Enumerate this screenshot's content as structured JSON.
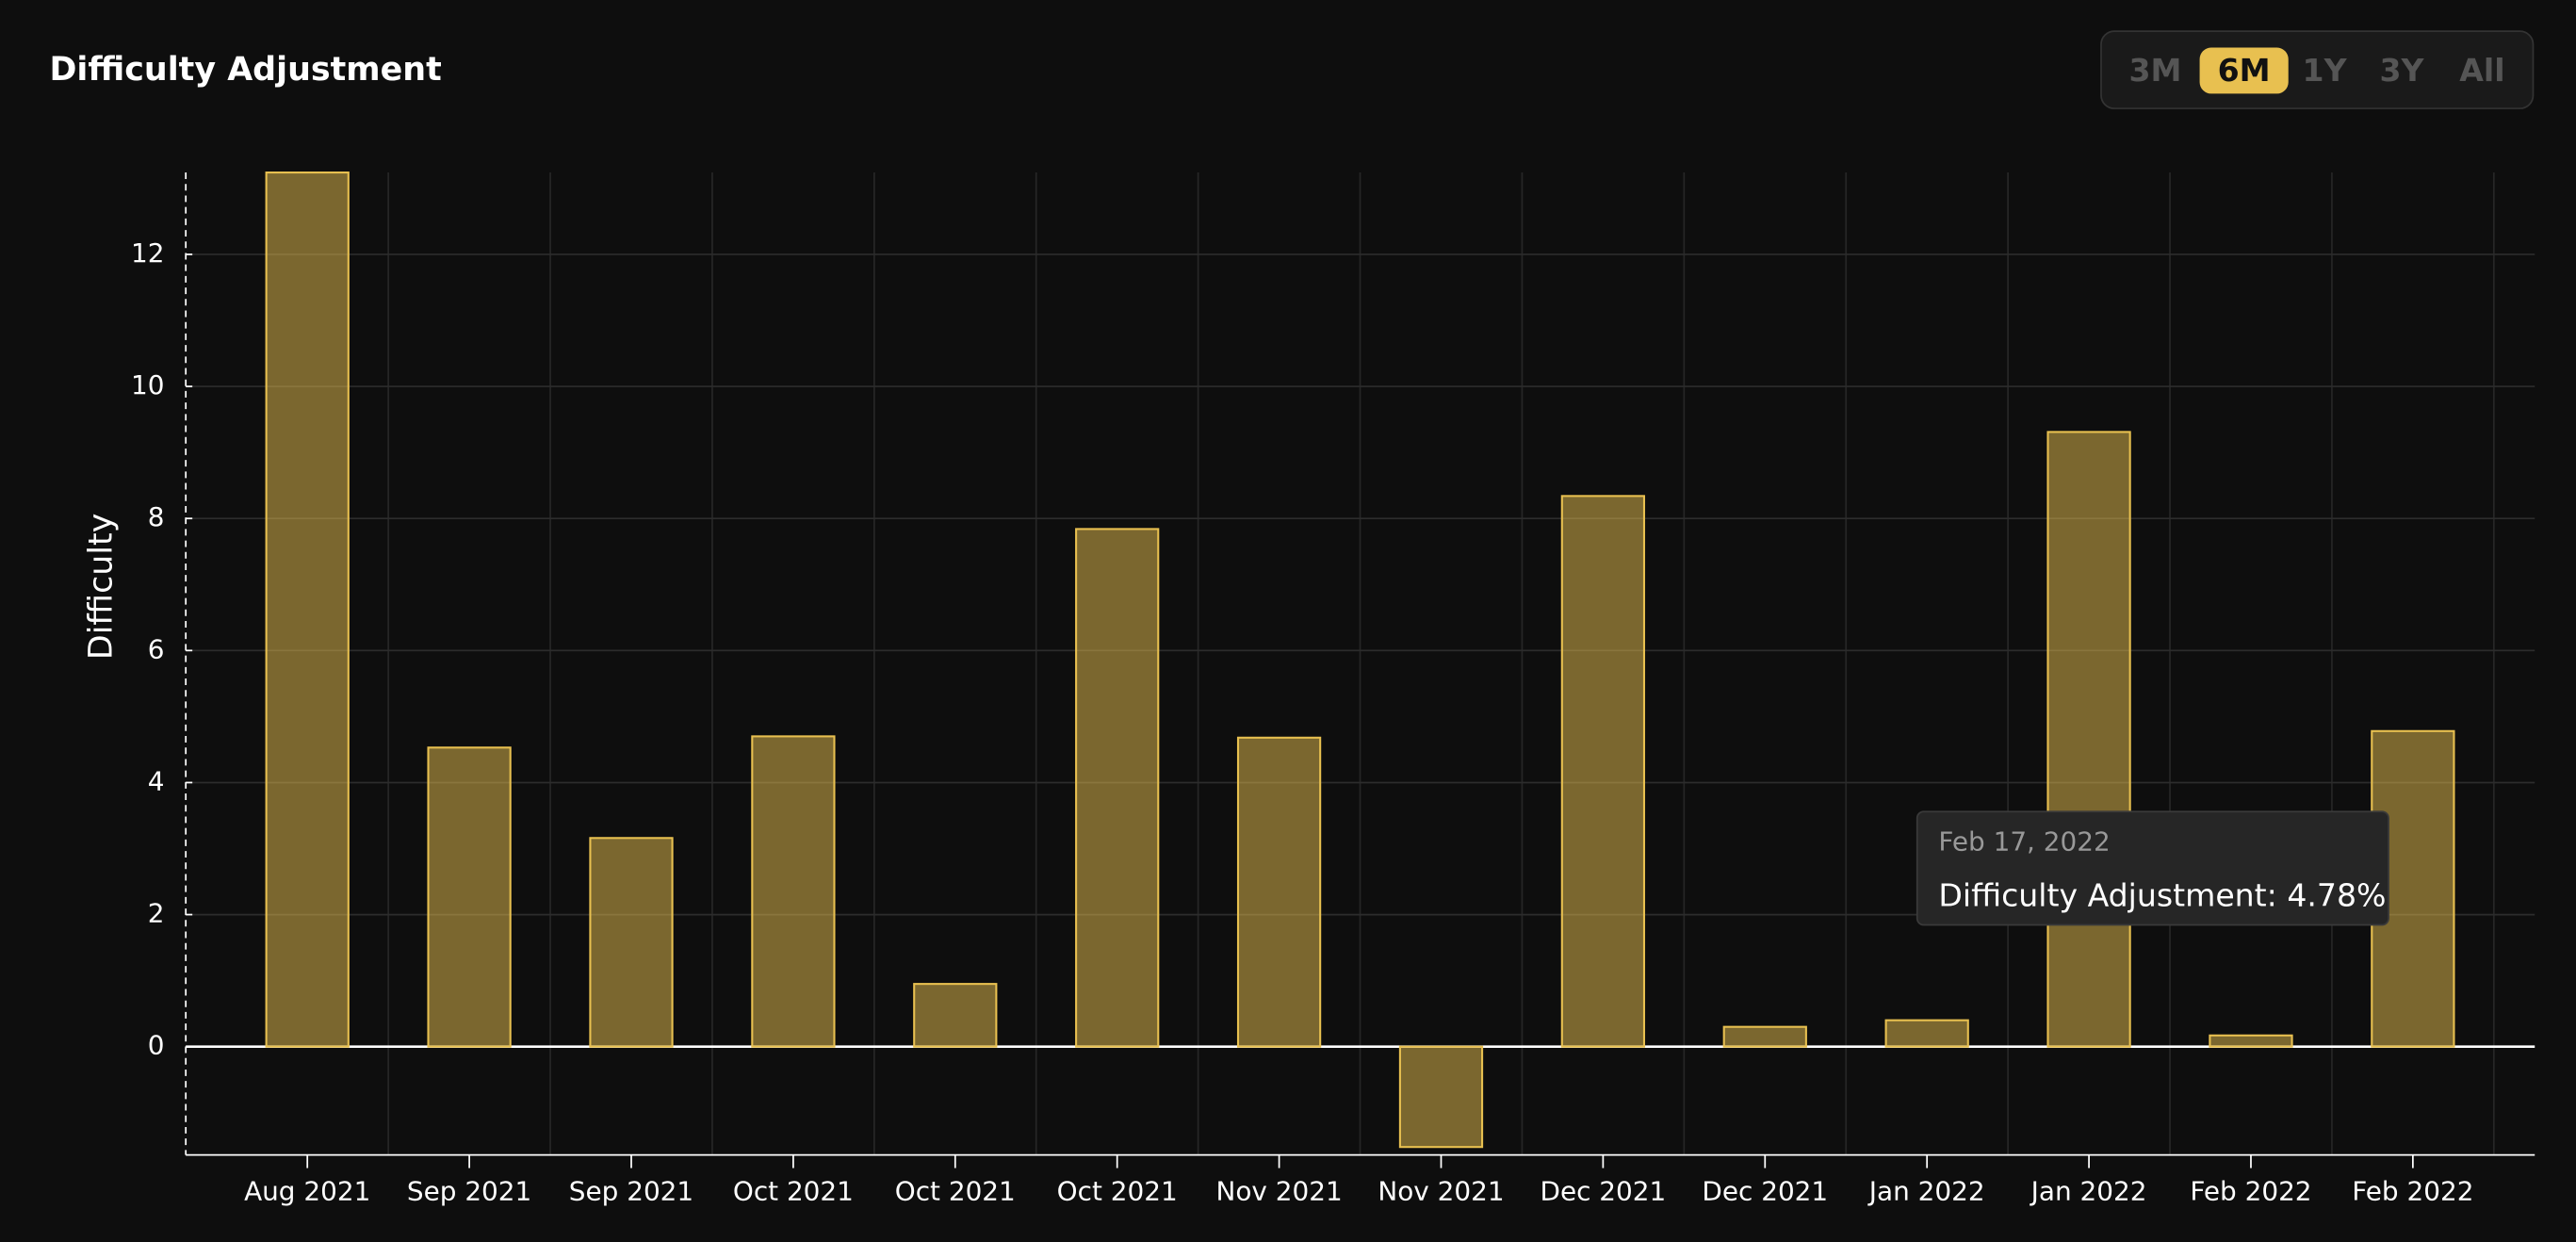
{
  "header": {
    "title": "Difficulty Adjustment",
    "ranges": [
      "3M",
      "6M",
      "1Y",
      "3Y",
      "All"
    ],
    "active_range": "6M"
  },
  "chart_data": {
    "type": "bar",
    "y_label": "Difficulty",
    "categories": [
      "Aug 2021",
      "Sep 2021",
      "Sep 2021",
      "Oct 2021",
      "Oct 2021",
      "Oct 2021",
      "Nov 2021",
      "Nov 2021",
      "Dec 2021",
      "Dec 2021",
      "Jan 2022",
      "Jan 2022",
      "Feb 2022",
      "Feb 2022"
    ],
    "values": [
      13.24,
      4.53,
      3.16,
      4.7,
      0.95,
      7.84,
      4.68,
      -1.52,
      8.34,
      0.3,
      0.4,
      9.31,
      0.17,
      4.78
    ],
    "color": "#e8c050",
    "ylim": [
      -1.64,
      13.24
    ],
    "yticks": [
      0,
      2,
      4,
      6,
      8,
      10,
      12
    ],
    "grid": true
  },
  "tooltip": {
    "date": "Feb 17, 2022",
    "text": "Difficulty Adjustment: 4.78%"
  }
}
